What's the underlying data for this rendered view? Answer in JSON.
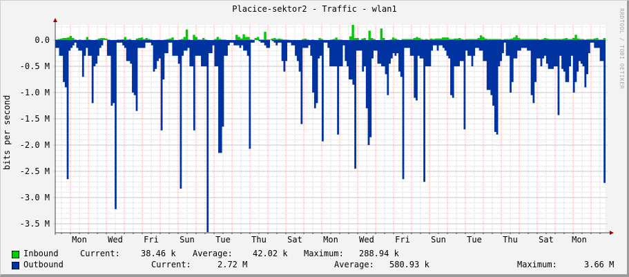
{
  "title": "Placice-sektor2 - Traffic - wlan1",
  "watermark": "RRDTOOL / TOBI OETIKER",
  "chart_data": {
    "type": "area",
    "title": "Placice-sektor2 - Traffic - wlan1",
    "xlabel": "",
    "ylabel": "bits per second",
    "ylim": [
      -3.66,
      0.3
    ],
    "y_ticks": [
      "0.0",
      "-0.5 M",
      "-1.0 M",
      "-1.5 M",
      "-2.0 M",
      "-2.5 M",
      "-3.0 M",
      "-3.5 M"
    ],
    "x_ticks": [
      "Mon",
      "Wed",
      "Fri",
      "Sun",
      "Tue",
      "Thu",
      "Sat",
      "Mon",
      "Wed",
      "Fri",
      "Sun",
      "Tue",
      "Thu",
      "Sat",
      "Mon"
    ],
    "grid": true,
    "legend_position": "bottom",
    "series": [
      {
        "name": "Inbound",
        "color": "#00cc00",
        "unit": "bps (positive, k)",
        "current": "38.46 k",
        "average": "42.02 k",
        "maximum": "288.94 k",
        "values_k": [
          10,
          20,
          30,
          40,
          40,
          50,
          80,
          40,
          10,
          0,
          10,
          0,
          5,
          60,
          10,
          0,
          0,
          10,
          30,
          40,
          40,
          30,
          10,
          0,
          0,
          0,
          10,
          10,
          15,
          60,
          10,
          20,
          0,
          0,
          30,
          40,
          50,
          20,
          40,
          20,
          10,
          0,
          0,
          5,
          0,
          0,
          10,
          20,
          30,
          50,
          0,
          0,
          10,
          20,
          60,
          200,
          10,
          0,
          100,
          60,
          10,
          10,
          40,
          10,
          0,
          0,
          0,
          20,
          60,
          20,
          10,
          10,
          0,
          0,
          0,
          0,
          100,
          60,
          30,
          110,
          60,
          60,
          10,
          5,
          40,
          60,
          10,
          10,
          160,
          10,
          10,
          30,
          40,
          20,
          30,
          20,
          10,
          10,
          5,
          0,
          0,
          0,
          0,
          0,
          20,
          30,
          10,
          0,
          10,
          0,
          0,
          40,
          20,
          0,
          0,
          0,
          10,
          20,
          50,
          10,
          10,
          0,
          0,
          0,
          70,
          290,
          40,
          40,
          0,
          30,
          40,
          0,
          180,
          40,
          20,
          0,
          0,
          220,
          40,
          0,
          0,
          10,
          50,
          30,
          10,
          0,
          20,
          20,
          20,
          20,
          20,
          40,
          60,
          40,
          20,
          10,
          20,
          10,
          30,
          20,
          30,
          30,
          30,
          50,
          50,
          50,
          20,
          20,
          30,
          30,
          40,
          20,
          10,
          20,
          20,
          20,
          20,
          20,
          40,
          90,
          60,
          30,
          20,
          20,
          20,
          20,
          20,
          20,
          10,
          20,
          20,
          20,
          30,
          50,
          90,
          40,
          20,
          20,
          20,
          20,
          20,
          20,
          20,
          20,
          10,
          20,
          40,
          30,
          20,
          20,
          20,
          20,
          20,
          20,
          30,
          40,
          20,
          20,
          40,
          100,
          30,
          20,
          20,
          10,
          20,
          20,
          20,
          30,
          40,
          10,
          10,
          40
        ]
      },
      {
        "name": "Outbound",
        "color": "#0033a0",
        "unit": "bps (negative, M)",
        "current": "2.72 M",
        "average": "580.93 k",
        "maximum": "3.66 M",
        "values_M": [
          0.15,
          0.15,
          0.3,
          0.3,
          0.8,
          0.9,
          2.65,
          0.2,
          0.15,
          0.1,
          0.05,
          0.15,
          0.2,
          0.2,
          0.7,
          0.3,
          0.15,
          0.3,
          0.3,
          1.2,
          0.5,
          0.45,
          0.3,
          0.15,
          0.1,
          0,
          0,
          0.3,
          0.3,
          1.25,
          1.2,
          3.22,
          0.05,
          0.05,
          0.05,
          0.1,
          0.15,
          0.4,
          0.4,
          0.45,
          1.0,
          1.05,
          1.35,
          0.15,
          0.15,
          0.15,
          0.15,
          0.05,
          0.05,
          0.05,
          0.1,
          0.6,
          0.55,
          0.4,
          0.35,
          1.72,
          0.75,
          0.25,
          0.25,
          0.05,
          0.05,
          0.3,
          0.3,
          0.3,
          0.45,
          2.83,
          0.3,
          0.2,
          0.2,
          0.15,
          0.5,
          0.5,
          1.72,
          0.3,
          0.3,
          0.3,
          0.5,
          0.5,
          0.5,
          3.66,
          0.25,
          0.25,
          0.1,
          0.5,
          0.5,
          2.15,
          2.15,
          1.65,
          0.3,
          0.3,
          0.1,
          0.05,
          0.05,
          0.1,
          0.1,
          0.1,
          0.15,
          0.1,
          0.2,
          0.2,
          0.3,
          2.07,
          0.05,
          0.05,
          0,
          0,
          0.02,
          0.05,
          0.05,
          0.1,
          0.15,
          0.15,
          0,
          0.02,
          0.05,
          0.1,
          0.05,
          0.05,
          0.4,
          0.6,
          0.4,
          0.05,
          0.05,
          0.1,
          0.1,
          0.3,
          0.4,
          0.6,
          1.6,
          0.15,
          0.15,
          0.15,
          0.1,
          0.3,
          1.0,
          1.3,
          1.2,
          0.35,
          0.3,
          1.93,
          0.05,
          0.05,
          0.15,
          0.5,
          0.5,
          0.5,
          0.5,
          1.8,
          0.5,
          0.5,
          0.1,
          0.4,
          0.5,
          0.75,
          0.75,
          0.85,
          2.45,
          0.2,
          0.2,
          0.2,
          0.6,
          0.5,
          1.3,
          2.0,
          1.85,
          0.35,
          0.2,
          0.2,
          0.45,
          0.45,
          0.5,
          0.5,
          0.65,
          1.05,
          0.45,
          0.35,
          0.25,
          0.3,
          0.25,
          0.6,
          0.7,
          2.65,
          0.15,
          0.15,
          0.15,
          0.3,
          0.3,
          1.1,
          1.15,
          0.3,
          0.35,
          0.35,
          2.7,
          0.5,
          0.5,
          0.5,
          0.2,
          0.1,
          0.1,
          0.2,
          0.1,
          0.1,
          0.15,
          0.2,
          0.3,
          0.35,
          1.05,
          1.1,
          0.5,
          0.5,
          0.5,
          0.4,
          0.4,
          1.7,
          0.2,
          0.3,
          0.3,
          0.5,
          0.3,
          0.15,
          0.15,
          0.2,
          0.2,
          0.4,
          0.4,
          0.95,
          0.95,
          1.05,
          1.25,
          1.75,
          1.8,
          0.5,
          0.4,
          0.25,
          0.05,
          0.3,
          0.3,
          1.0,
          0.8,
          0.35,
          0.35,
          0.2,
          0.2,
          0.15,
          0.15,
          0.15,
          0.2,
          0.2,
          1.05,
          1.2,
          0.8,
          0.35,
          0.35,
          0.5,
          0.35,
          0.3,
          0.45,
          0.55,
          0.55,
          0.55,
          0.5,
          0.5,
          1.43,
          0.3,
          0.55,
          0.6,
          0.8,
          0.8,
          0.5,
          0.3,
          1.0,
          0.8,
          0.6,
          0.4,
          0.45,
          0.5,
          0.9,
          0.65,
          0.25,
          0.05,
          0.05,
          0.15,
          0.15,
          0.15,
          0.4,
          0.4,
          2.72
        ]
      }
    ]
  },
  "legend": {
    "inbound": {
      "label": "Inbound",
      "current_label": "Current:",
      "current": "38.46 k",
      "average_label": "Average:",
      "average": "42.02 k",
      "maximum_label": "Maximum:",
      "maximum": "288.94 k"
    },
    "outbound": {
      "label": "Outbound",
      "current_label": "Current:",
      "current": "2.72 M",
      "average_label": "Average:",
      "average": "580.93 k",
      "maximum_label": "Maximum:",
      "maximum": "3.66 M"
    }
  }
}
